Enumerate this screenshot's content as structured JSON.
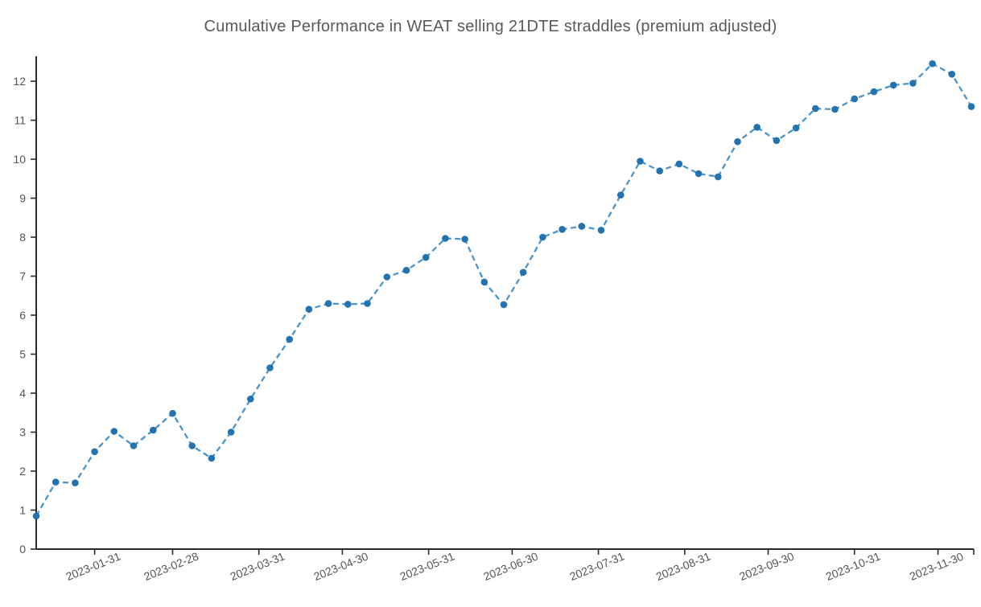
{
  "page": {
    "background_color": "#ffffff"
  },
  "chart_data": {
    "type": "line",
    "title": "Cumulative Performance in WEAT selling 21DTE straddles (premium adjusted)",
    "xlabel": "",
    "ylabel": "",
    "grid": false,
    "legend": "none",
    "x_dates": [
      "2023-01-10",
      "2023-01-17",
      "2023-01-24",
      "2023-01-31",
      "2023-02-07",
      "2023-02-14",
      "2023-02-21",
      "2023-02-28",
      "2023-03-07",
      "2023-03-14",
      "2023-03-21",
      "2023-03-28",
      "2023-04-04",
      "2023-04-11",
      "2023-04-18",
      "2023-04-25",
      "2023-05-02",
      "2023-05-09",
      "2023-05-16",
      "2023-05-23",
      "2023-05-30",
      "2023-06-06",
      "2023-06-13",
      "2023-06-20",
      "2023-06-27",
      "2023-07-04",
      "2023-07-11",
      "2023-07-18",
      "2023-07-25",
      "2023-08-01",
      "2023-08-08",
      "2023-08-15",
      "2023-08-22",
      "2023-08-29",
      "2023-09-05",
      "2023-09-12",
      "2023-09-19",
      "2023-09-26",
      "2023-10-03",
      "2023-10-10",
      "2023-10-17",
      "2023-10-24",
      "2023-10-31",
      "2023-11-07",
      "2023-11-14",
      "2023-11-21",
      "2023-11-28",
      "2023-12-05",
      "2023-12-12"
    ],
    "values": [
      0.85,
      1.72,
      1.7,
      2.5,
      3.02,
      2.65,
      3.05,
      3.48,
      2.65,
      2.33,
      3.0,
      3.85,
      4.65,
      5.38,
      6.15,
      6.3,
      6.28,
      6.3,
      6.98,
      7.15,
      7.48,
      7.97,
      7.95,
      6.85,
      6.27,
      7.1,
      8.0,
      8.2,
      8.28,
      8.18,
      9.08,
      9.95,
      9.7,
      9.88,
      9.63,
      9.55,
      10.45,
      10.82,
      10.48,
      10.8,
      11.3,
      11.28,
      11.55,
      11.73,
      11.9,
      11.95,
      12.45,
      12.18,
      11.35
    ],
    "x_tick_labels": [
      "2023-01-31",
      "2023-02-28",
      "2023-03-31",
      "2023-04-30",
      "2023-05-31",
      "2023-06-30",
      "2023-07-31",
      "2023-08-31",
      "2023-09-30",
      "2023-10-31",
      "2023-11-30"
    ],
    "y_ticks": [
      0,
      1,
      2,
      3,
      4,
      5,
      6,
      7,
      8,
      9,
      10,
      11,
      12
    ],
    "ylim": [
      0,
      12.64
    ],
    "style": {
      "line_color": "#4a94cc",
      "marker_color": "#2373b0",
      "line_dash": "dashed",
      "marker": "circle",
      "axis_color": "#2b2b2b",
      "tick_label_color": "#555555",
      "title_color": "#595959"
    }
  }
}
